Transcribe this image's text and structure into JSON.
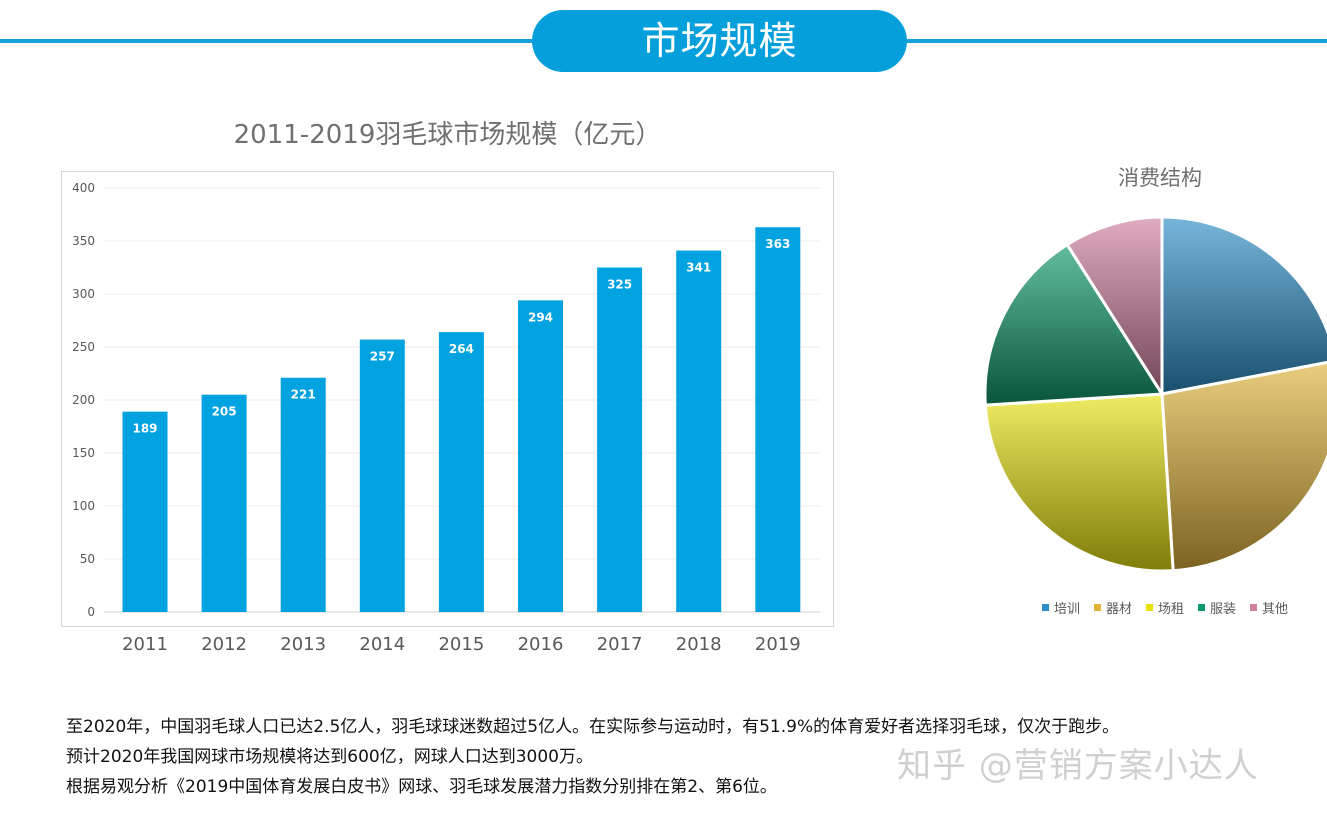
{
  "header": {
    "title": "市场规模"
  },
  "bar_chart": {
    "title": "2011-2019羽毛球市场规模（亿元）"
  },
  "pie_chart": {
    "title": "消费结构"
  },
  "chart_data": [
    {
      "type": "bar",
      "title": "2011-2019羽毛球市场规模（亿元）",
      "categories": [
        "2011",
        "2012",
        "2013",
        "2014",
        "2015",
        "2016",
        "2017",
        "2018",
        "2019"
      ],
      "values": [
        189,
        205,
        221,
        257,
        264,
        294,
        325,
        341,
        363
      ],
      "ylim": [
        0,
        400
      ],
      "yticks": [
        0,
        50,
        100,
        150,
        200,
        250,
        300,
        350,
        400
      ],
      "grid": true,
      "color": "#00a2df",
      "data_labels": true
    },
    {
      "type": "pie",
      "title": "消费结构",
      "labels": [
        "培训",
        "器材",
        "场租",
        "服装",
        "其他"
      ],
      "values": [
        22,
        27,
        25,
        17,
        9
      ],
      "colors": [
        "#2e8fc8",
        "#e0b43a",
        "#e6e20f",
        "#0f9a6c",
        "#d0809f"
      ],
      "legend": "bottom"
    }
  ],
  "description": {
    "lines": [
      "至2020年，中国羽毛球人口已达2.5亿人，羽毛球球迷数超过5亿人。在实际参与运动时，有51.9%的体育爱好者选择羽毛球，仅次于跑步。",
      "预计2020年我国网球市场规模将达到600亿，网球人口达到3000万。",
      "根据易观分析《2019中国体育发展白皮书》网球、羽毛球发展潜力指数分别排在第2、第6位。"
    ]
  },
  "watermark": {
    "text": "知乎 @营销方案小达人"
  }
}
